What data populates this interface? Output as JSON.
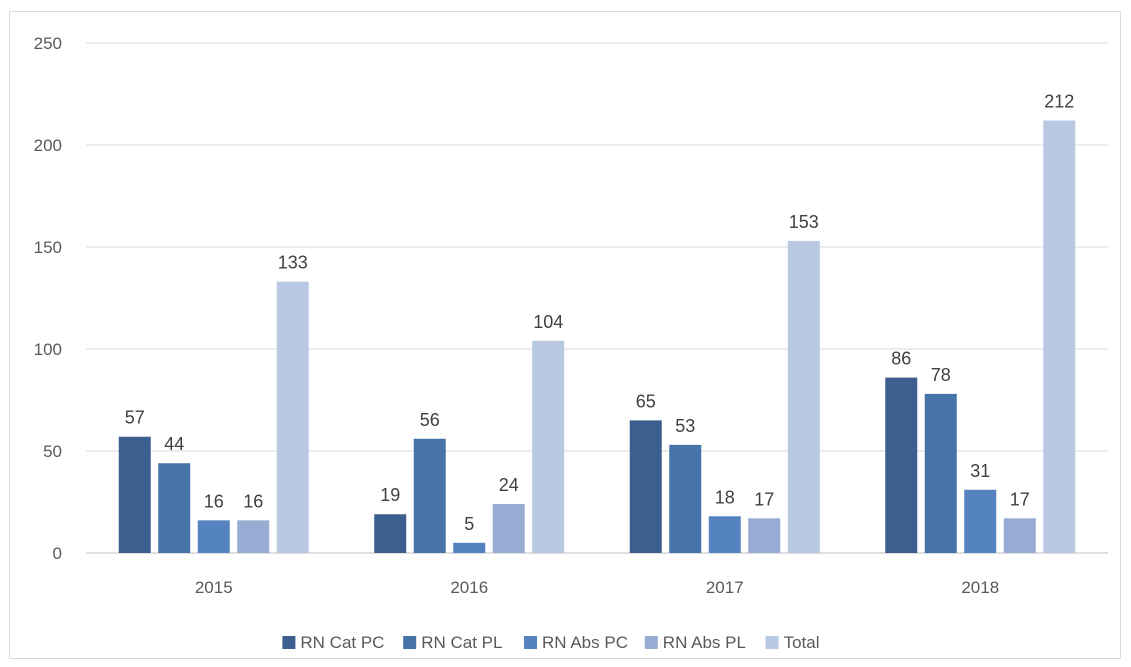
{
  "chart_data": {
    "type": "bar",
    "title": "",
    "xlabel": "",
    "ylabel": "",
    "categories": [
      "2015",
      "2016",
      "2017",
      "2018"
    ],
    "ylim": [
      0,
      250
    ],
    "yticks": [
      0,
      50,
      100,
      150,
      200,
      250
    ],
    "grid": true,
    "legend_position": "bottom",
    "series": [
      {
        "name": "RN Cat PC",
        "color": "#3d5f8f",
        "values": [
          57,
          19,
          65,
          86
        ]
      },
      {
        "name": "RN Cat PL",
        "color": "#4673a8",
        "values": [
          44,
          56,
          53,
          78
        ]
      },
      {
        "name": "RN Abs PC",
        "color": "#5483c0",
        "values": [
          16,
          5,
          18,
          31
        ]
      },
      {
        "name": "RN Abs PL",
        "color": "#97acd2",
        "values": [
          16,
          24,
          17,
          17
        ]
      },
      {
        "name": "Total",
        "color": "#b9c8e3",
        "values": [
          133,
          104,
          153,
          212
        ]
      }
    ]
  }
}
